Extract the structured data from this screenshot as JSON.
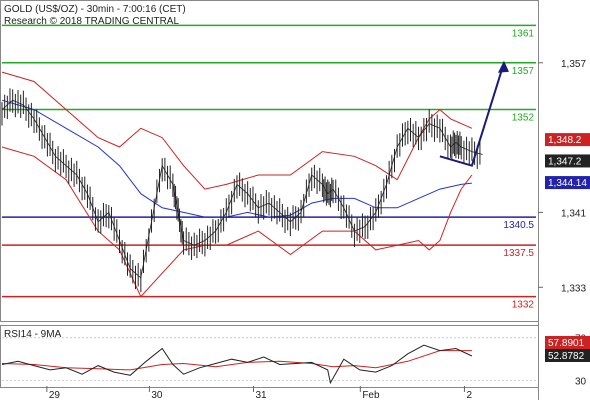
{
  "header": {
    "line1": "GOLD (US$/OZ) - 30min - 7:00:16 (CET)",
    "line2": "Research © 2018 TRADING CENTRAL"
  },
  "colors": {
    "support": "#2222aa",
    "resistance": "#22aa22",
    "red": "#cc2222",
    "price": "#222222",
    "bollinger": "#cc2222",
    "ma": "#2233cc",
    "arrow": "#1a1a7a",
    "grid": "#cccccc"
  },
  "chart_data": [
    {
      "type": "line",
      "name": "price-panel",
      "ylim": [
        1329.5,
        1363.5
      ],
      "yticks": [
        {
          "value": 1357,
          "label": "1,357"
        },
        {
          "value": 1341,
          "label": "1,341"
        },
        {
          "value": 1333,
          "label": "1,333"
        }
      ],
      "levels": [
        {
          "value": 1361,
          "label": "1361",
          "kind": "resistance"
        },
        {
          "value": 1357,
          "label": "1357",
          "kind": "resistance"
        },
        {
          "value": 1352,
          "label": "1352",
          "kind": "resistance"
        },
        {
          "value": 1340.5,
          "label": "1340.5",
          "kind": "support"
        },
        {
          "value": 1337.5,
          "label": "1337.5",
          "kind": "red"
        },
        {
          "value": 1332,
          "label": "1332",
          "kind": "red"
        }
      ],
      "price_tags": [
        {
          "value": 1348.2,
          "label": "1,348.2",
          "kind": "red"
        },
        {
          "value": 1347.2,
          "label": "1,347.2",
          "kind": "dark"
        },
        {
          "value": 1344.14,
          "label": "1,344.14",
          "kind": "blue"
        }
      ],
      "x_range": [
        0,
        100
      ],
      "price": {
        "x": [
          0,
          2,
          4,
          6,
          8,
          10,
          12,
          14,
          16,
          18,
          20,
          22,
          24,
          26,
          28,
          30,
          32,
          33,
          34,
          36,
          38,
          40,
          42,
          44,
          46,
          48,
          50,
          52,
          54,
          56,
          58,
          60,
          61,
          62,
          64,
          66,
          68,
          70,
          72,
          74,
          76,
          78,
          80,
          82,
          84,
          85,
          86,
          88,
          90
        ],
        "y": [
          1352,
          1353,
          1352.5,
          1351,
          1349,
          1347,
          1346,
          1345,
          1343,
          1340,
          1341,
          1338,
          1335,
          1334,
          1340,
          1346,
          1344,
          1341,
          1338,
          1337.5,
          1338,
          1339,
          1341,
          1344,
          1343,
          1341.5,
          1342,
          1341,
          1340,
          1341,
          1345,
          1344,
          1343,
          1343.5,
          1341.5,
          1339,
          1339.5,
          1341,
          1344,
          1348,
          1350,
          1349,
          1350.5,
          1350,
          1348,
          1348.5,
          1348,
          1347.5,
          1347.2
        ]
      },
      "bollinger_upper": {
        "x": [
          0,
          6,
          12,
          18,
          22,
          26,
          30,
          34,
          38,
          42,
          48,
          54,
          60,
          66,
          70,
          74,
          78,
          80,
          82,
          84,
          86,
          88
        ],
        "y": [
          1356,
          1355,
          1352,
          1349,
          1348,
          1350,
          1349,
          1346,
          1343.5,
          1344,
          1345,
          1345,
          1347.5,
          1347,
          1346,
          1344.5,
          1349,
          1351,
          1352,
          1351,
          1350.5,
          1350
        ]
      },
      "bollinger_lower": {
        "x": [
          0,
          6,
          12,
          18,
          22,
          26,
          30,
          34,
          38,
          42,
          48,
          54,
          60,
          66,
          70,
          74,
          78,
          80,
          82,
          84,
          86,
          88
        ],
        "y": [
          1348,
          1347,
          1344.5,
          1339,
          1337,
          1332,
          1334.5,
          1337,
          1337.5,
          1337.5,
          1339,
          1336.5,
          1339,
          1339,
          1337,
          1337.5,
          1338,
          1337,
          1338,
          1341,
          1343.5,
          1345
        ]
      },
      "ma": {
        "x": [
          0,
          6,
          12,
          18,
          22,
          26,
          30,
          34,
          38,
          42,
          46,
          50,
          54,
          58,
          62,
          66,
          70,
          74,
          78,
          82,
          86,
          88
        ],
        "y": [
          1353,
          1352,
          1350,
          1348,
          1346,
          1343,
          1341.5,
          1341,
          1340.5,
          1340.5,
          1341,
          1340.5,
          1340.7,
          1342,
          1342.5,
          1342.5,
          1341.5,
          1341.5,
          1342.5,
          1343.5,
          1344,
          1344.14
        ]
      },
      "forecast_arrow": {
        "x": [
          82,
          88,
          94
        ],
        "y": [
          1347,
          1346,
          1357
        ]
      }
    },
    {
      "type": "line",
      "name": "rsi-panel",
      "title": "RSI14 - 9MA",
      "ylim": [
        25,
        80
      ],
      "yticks": [
        {
          "value": 70,
          "label": "70"
        },
        {
          "value": 30,
          "label": "30"
        }
      ],
      "tags": [
        {
          "value": 57.8901,
          "label": "57.8901",
          "kind": "red"
        },
        {
          "value": 52.8782,
          "label": "52.8782",
          "kind": "dark"
        }
      ],
      "rsi": {
        "x": [
          0,
          3,
          6,
          9,
          12,
          15,
          18,
          21,
          24,
          27,
          30,
          32,
          34,
          37,
          40,
          43,
          46,
          49,
          52,
          55,
          58,
          61,
          61.5,
          64,
          67,
          70,
          73,
          76,
          79,
          82,
          85,
          88
        ],
        "y": [
          45,
          48,
          44,
          40,
          42,
          36,
          44,
          38,
          35,
          48,
          60,
          45,
          36,
          42,
          46,
          50,
          47,
          52,
          45,
          46,
          47,
          40,
          28,
          50,
          40,
          38,
          44,
          55,
          63,
          58,
          60,
          53
        ]
      },
      "ma": {
        "x": [
          0,
          6,
          12,
          18,
          24,
          30,
          34,
          40,
          46,
          52,
          58,
          62,
          66,
          70,
          76,
          82,
          88
        ],
        "y": [
          46,
          45,
          42,
          41,
          40,
          45,
          46,
          43,
          47,
          48,
          46,
          43,
          44,
          42,
          48,
          58,
          58
        ]
      }
    }
  ],
  "x_axis": {
    "labels": [
      {
        "x": 8.4,
        "label": "29"
      },
      {
        "x": 27.6,
        "label": "30"
      },
      {
        "x": 47.1,
        "label": "31"
      },
      {
        "x": 67.1,
        "label": "Feb"
      },
      {
        "x": 86.6,
        "label": "2"
      }
    ]
  }
}
